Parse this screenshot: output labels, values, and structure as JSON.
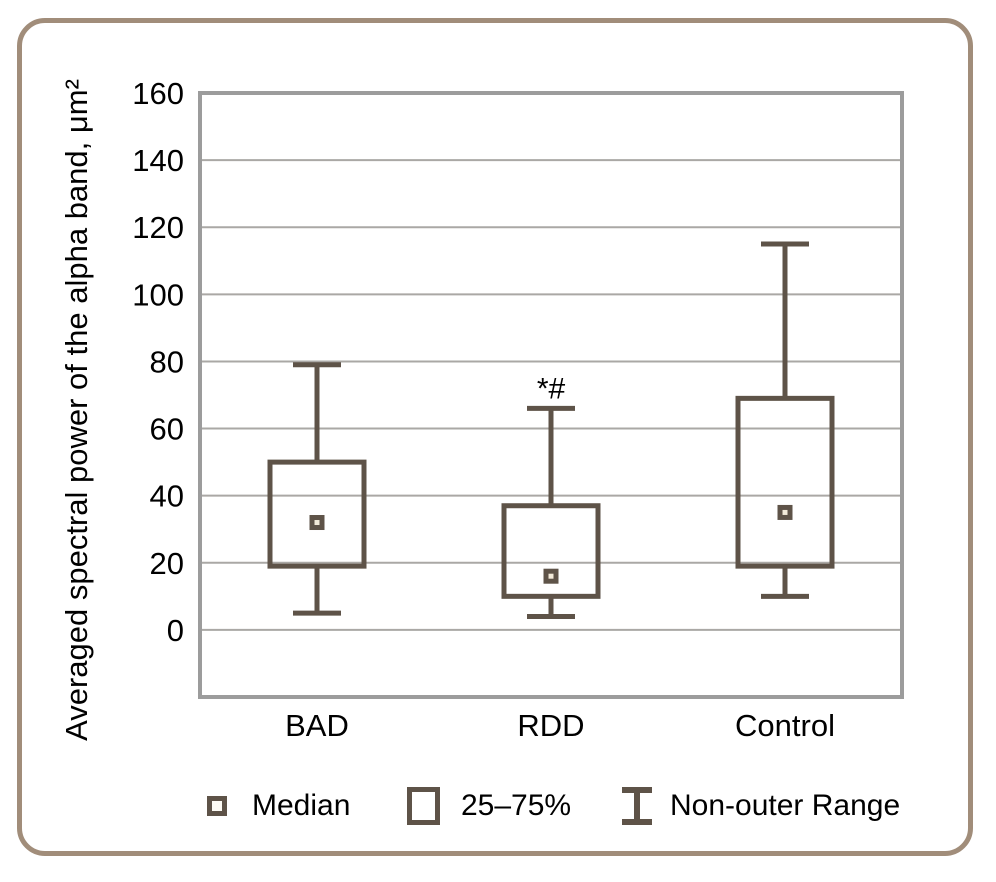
{
  "figure": {
    "background": "#ffffff",
    "outer_border_color": "#a18d7a"
  },
  "chart_data": {
    "type": "box",
    "title": "",
    "xlabel": "",
    "ylabel": "Averaged spectral power of the alpha band, μm²",
    "ylim": [
      -20,
      160
    ],
    "yticks": [
      0,
      20,
      40,
      60,
      80,
      100,
      120,
      140,
      160
    ],
    "grid": true,
    "legend_position": "bottom",
    "categories": [
      "BAD",
      "RDD",
      "Control"
    ],
    "series": [
      {
        "category": "BAD",
        "whisker_low": 5,
        "q1": 19,
        "median": 32,
        "q3": 50,
        "whisker_high": 79,
        "annotation": ""
      },
      {
        "category": "RDD",
        "whisker_low": 4,
        "q1": 10,
        "median": 16,
        "q3": 37,
        "whisker_high": 66,
        "annotation": "*#"
      },
      {
        "category": "Control",
        "whisker_low": 10,
        "q1": 19,
        "median": 35,
        "q3": 69,
        "whisker_high": 115,
        "annotation": ""
      }
    ],
    "colors": {
      "box_stroke": "#5e5348",
      "median_fill": "#f2ead9",
      "gridline": "#aaa8a5",
      "frame": "#9c9c9c",
      "text": "#000000"
    }
  },
  "legend": {
    "items": [
      {
        "symbol": "median-marker",
        "label": "Median"
      },
      {
        "symbol": "iqr-box",
        "label": "25–75%"
      },
      {
        "symbol": "whisker-range",
        "label": "Non-outer Range"
      }
    ]
  }
}
